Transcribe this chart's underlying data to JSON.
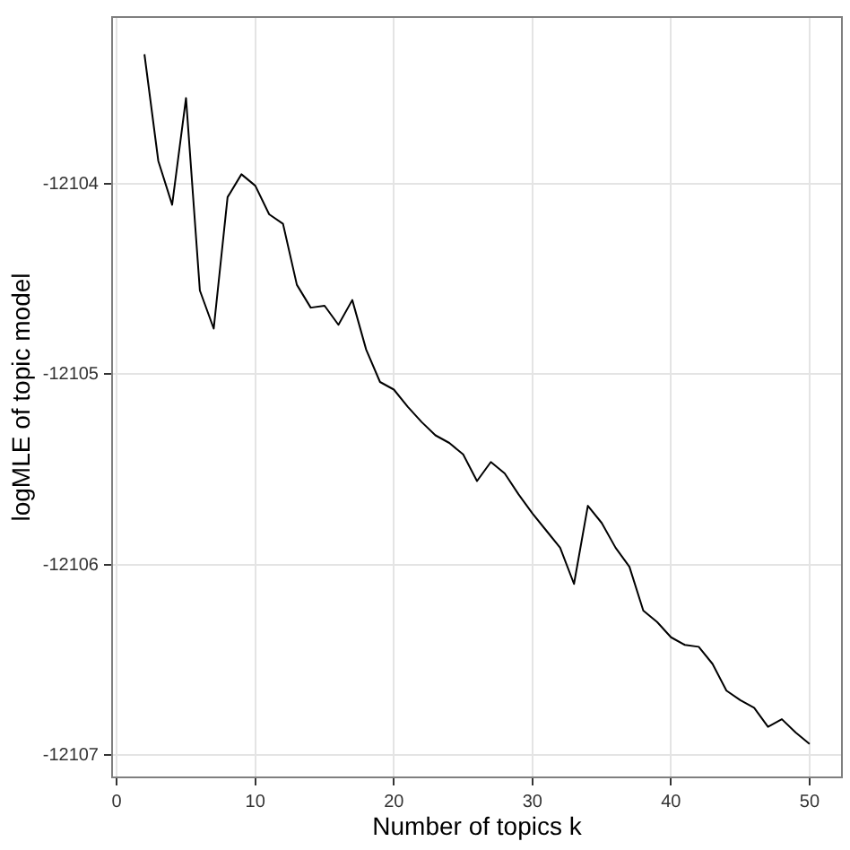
{
  "chart_data": {
    "type": "line",
    "xlabel": "Number of topics k",
    "ylabel": "logMLE of topic model",
    "x": [
      2,
      3,
      4,
      5,
      6,
      7,
      8,
      9,
      10,
      11,
      12,
      13,
      14,
      15,
      16,
      17,
      18,
      19,
      20,
      21,
      22,
      23,
      24,
      25,
      26,
      27,
      28,
      29,
      30,
      31,
      32,
      33,
      34,
      35,
      36,
      37,
      38,
      39,
      40,
      41,
      42,
      43,
      44,
      45,
      46,
      47,
      48,
      49,
      50
    ],
    "series": [
      {
        "color": "#000000",
        "values": [
          -12103.32,
          -12103.88,
          -12104.11,
          -12103.55,
          -12104.56,
          -12104.76,
          -12104.07,
          -12103.95,
          -12104.01,
          -12104.16,
          -12104.21,
          -12104.53,
          -12104.65,
          -12104.64,
          -12104.74,
          -12104.61,
          -12104.87,
          -12105.04,
          -12105.08,
          -12105.17,
          -12105.25,
          -12105.32,
          -12105.36,
          -12105.42,
          -12105.56,
          -12105.46,
          -12105.52,
          -12105.63,
          -12105.73,
          -12105.82,
          -12105.91,
          -12106.1,
          -12105.69,
          -12105.78,
          -12105.91,
          -12106.01,
          -12106.24,
          -12106.3,
          -12106.38,
          -12106.42,
          -12106.43,
          -12106.52,
          -12106.66,
          -12106.71,
          -12106.75,
          -12106.85,
          -12106.81,
          -12106.88,
          -12106.94
        ]
      }
    ],
    "xlim": [
      -0.4,
      52.4
    ],
    "ylim": [
      -12107.12,
      -12103.12
    ],
    "xticks": [
      0,
      10,
      20,
      30,
      40,
      50
    ],
    "yticks": [
      -12107,
      -12106,
      -12105,
      -12104
    ],
    "grid": true,
    "legend": false,
    "marker": "none",
    "line_style": "solid"
  }
}
